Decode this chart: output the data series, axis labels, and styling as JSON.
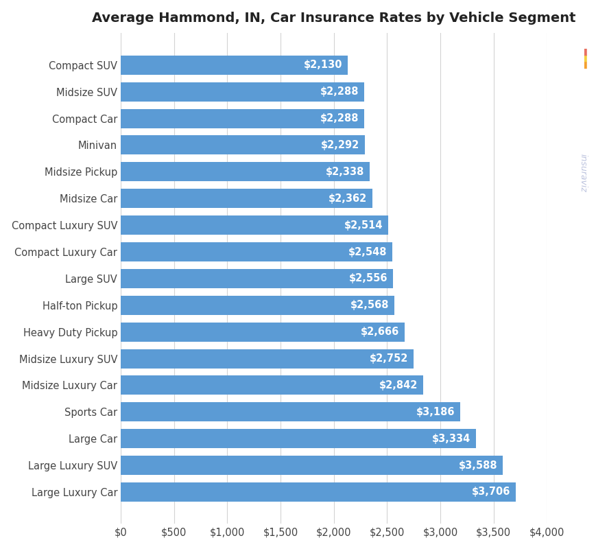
{
  "title": "Average Hammond, IN, Car Insurance Rates by Vehicle Segment",
  "categories": [
    "Compact SUV",
    "Midsize SUV",
    "Compact Car",
    "Minivan",
    "Midsize Pickup",
    "Midsize Car",
    "Compact Luxury SUV",
    "Compact Luxury Car",
    "Large SUV",
    "Half-ton Pickup",
    "Heavy Duty Pickup",
    "Midsize Luxury SUV",
    "Midsize Luxury Car",
    "Sports Car",
    "Large Car",
    "Large Luxury SUV",
    "Large Luxury Car"
  ],
  "values": [
    2130,
    2288,
    2288,
    2292,
    2338,
    2362,
    2514,
    2548,
    2556,
    2568,
    2666,
    2752,
    2842,
    3186,
    3334,
    3588,
    3706
  ],
  "bar_color": "#5b9bd5",
  "background_color": "#ffffff",
  "plot_background_color": "#ffffff",
  "grid_color": "#d3d3d3",
  "xlim": [
    0,
    4000
  ],
  "xtick_values": [
    0,
    500,
    1000,
    1500,
    2000,
    2500,
    3000,
    3500,
    4000
  ],
  "xtick_labels": [
    "$0",
    "$500",
    "$1,000",
    "$1,500",
    "$2,000",
    "$2,500",
    "$3,000",
    "$3,500",
    "$4,000"
  ],
  "title_fontsize": 14,
  "label_fontsize": 10.5,
  "tick_fontsize": 10.5,
  "value_fontsize": 10.5,
  "bar_height": 0.72,
  "text_color": "#ffffff",
  "axis_label_color": "#444444",
  "title_color": "#222222",
  "watermark_color": "#b0b8d8",
  "watermark_text": "insuraviz"
}
